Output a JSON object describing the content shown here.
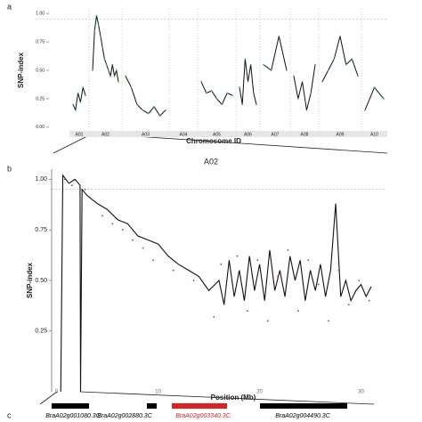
{
  "panel_labels": [
    "a",
    "b",
    "c"
  ],
  "chart_data": [
    {
      "type": "line",
      "x_label": "Chromosome ID",
      "y_label": "SNP-index",
      "categories": [
        "A01",
        "A02",
        "A03",
        "A04",
        "A05",
        "A06",
        "A07",
        "A08",
        "A09",
        "A10"
      ],
      "values": [
        [
          0.2,
          0.15,
          0.3,
          0.22,
          0.35,
          0.28
        ],
        [
          0.5,
          0.85,
          0.98,
          0.9,
          0.8,
          0.7,
          0.6,
          0.55,
          0.5,
          0.45,
          0.55,
          0.45,
          0.5,
          0.4
        ],
        [
          0.45,
          0.35,
          0.2,
          0.15,
          0.12,
          0.18,
          0.1,
          0.15
        ],
        [],
        [
          0.4,
          0.3,
          0.32,
          0.25,
          0.2,
          0.3,
          0.28
        ],
        [
          0.35,
          0.2,
          0.6,
          0.4,
          0.55,
          0.3,
          0.2
        ],
        [
          0.55,
          0.5,
          0.8,
          0.5
        ],
        [
          0.45,
          0.25,
          0.4,
          0.15,
          0.3,
          0.55
        ],
        [
          0.4,
          0.5,
          0.6,
          0.8,
          0.55,
          0.6,
          0.45
        ],
        [
          0.15,
          0.35,
          0.25
        ]
      ],
      "color": "#111111",
      "point_color": "#3cb371",
      "threshold": 0.95,
      "ylim": [
        -0.04,
        1.04
      ],
      "yticks": [
        {
          "value": 0,
          "label": "0.00"
        },
        {
          "value": 0.25,
          "label": "0.25"
        },
        {
          "value": 0.5,
          "label": "0.50"
        },
        {
          "value": 0.75,
          "label": "0.75"
        },
        {
          "value": 1,
          "label": "1.00"
        }
      ]
    },
    {
      "type": "line",
      "title": "A02",
      "x_label": "Position (Mb)",
      "y_label": "SNP-index",
      "x": [
        0.4,
        0.6,
        1.2,
        1.8,
        2.3,
        2.35,
        2.5,
        3,
        4,
        5,
        6,
        7,
        8,
        9,
        10,
        11,
        12,
        13,
        14,
        15,
        16,
        16.5,
        17,
        17.5,
        18,
        18.5,
        19,
        19.5,
        20,
        20.5,
        21,
        21.5,
        22,
        22.5,
        23,
        23.5,
        24,
        24.5,
        25,
        25.5,
        26,
        26.5,
        27,
        27.5,
        28,
        28.5,
        29,
        29.5,
        30,
        30.5,
        31
      ],
      "values": [
        -0.05,
        1.02,
        0.98,
        1.0,
        0.97,
        -0.05,
        0.95,
        0.92,
        0.88,
        0.85,
        0.8,
        0.78,
        0.72,
        0.7,
        0.68,
        0.62,
        0.58,
        0.55,
        0.52,
        0.45,
        0.5,
        0.38,
        0.6,
        0.42,
        0.55,
        0.4,
        0.62,
        0.45,
        0.58,
        0.4,
        0.65,
        0.45,
        0.55,
        0.42,
        0.62,
        0.5,
        0.6,
        0.4,
        0.55,
        0.45,
        0.58,
        0.42,
        0.55,
        0.88,
        0.42,
        0.5,
        0.4,
        0.45,
        0.48,
        0.42,
        0.47
      ],
      "points": {
        "x": [
          0.8,
          1.5,
          2.8,
          3.5,
          4.5,
          5.5,
          6.5,
          7.5,
          8.5,
          9.5,
          11.5,
          13.5,
          15.5,
          16.2,
          17.8,
          18.8,
          19.8,
          20.8,
          21.8,
          22.8,
          23.8,
          24.8,
          25.8,
          26.8,
          27.8,
          28.8,
          29.8,
          30.8
        ],
        "values": [
          1.0,
          0.97,
          0.95,
          0.9,
          0.82,
          0.78,
          0.75,
          0.7,
          0.66,
          0.6,
          0.55,
          0.5,
          0.32,
          0.58,
          0.62,
          0.35,
          0.6,
          0.3,
          0.52,
          0.65,
          0.35,
          0.6,
          0.48,
          0.3,
          0.55,
          0.38,
          0.5,
          0.4
        ]
      },
      "color": "#111111",
      "point_color": "#e02020",
      "threshold": 0.95,
      "xlim": [
        -0.5,
        32.5
      ],
      "xticks": [
        0,
        10,
        20,
        30
      ],
      "ylim": [
        -0.05,
        1.05
      ],
      "yticks": [
        {
          "value": 0.25,
          "label": "0.25"
        },
        {
          "value": 0.5,
          "label": "0.50"
        },
        {
          "value": 0.75,
          "label": "0.75"
        },
        {
          "value": 1,
          "label": "1.00"
        }
      ]
    }
  ],
  "genes": [
    {
      "name": "BraA02g001080.3C",
      "color": "#000000"
    },
    {
      "name": "BraA02g002880.3C",
      "color": "#000000"
    },
    {
      "name": "BraA02g003340.3C",
      "color": "#e02020"
    },
    {
      "name": "BraA02g004490.3C",
      "color": "#000000"
    }
  ]
}
